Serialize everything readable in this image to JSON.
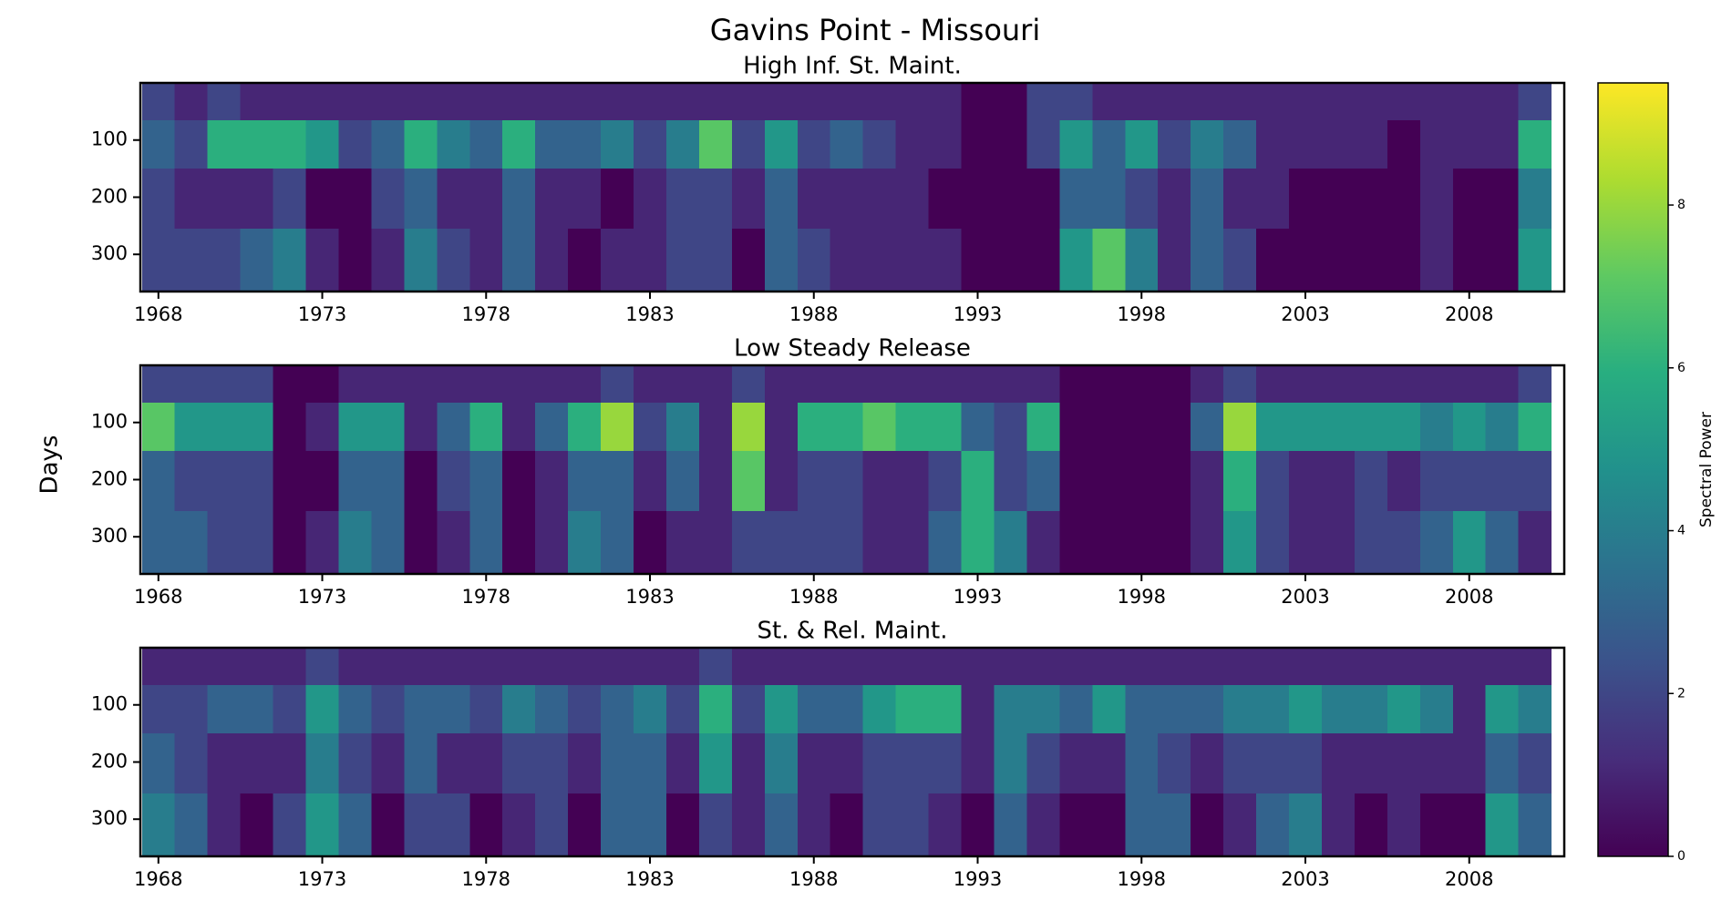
{
  "title": "Gavins Point - Missouri",
  "ylabel": "Days",
  "colorbar": {
    "label": "Spectral Power",
    "colormap": "viridis",
    "lim": [
      0,
      9.5
    ],
    "ticks": [
      0,
      2,
      4,
      6,
      8
    ]
  },
  "chart_data": [
    {
      "type": "heatmap",
      "title": "High Inf. St. Maint.",
      "x": [
        1968,
        1969,
        1970,
        1971,
        1972,
        1973,
        1974,
        1975,
        1976,
        1977,
        1978,
        1979,
        1980,
        1981,
        1982,
        1983,
        1984,
        1985,
        1986,
        1987,
        1988,
        1989,
        1990,
        1991,
        1992,
        1993,
        1994,
        1995,
        1996,
        1997,
        1998,
        1999,
        2000,
        2001,
        2002,
        2003,
        2004,
        2005,
        2006,
        2007,
        2008,
        2009,
        2010
      ],
      "y": [
        30,
        100,
        200,
        310
      ],
      "z": [
        [
          2,
          1,
          2,
          1,
          1,
          1,
          1,
          1,
          1,
          1,
          1,
          1,
          1,
          1,
          1,
          1,
          1,
          1,
          1,
          1,
          1,
          1,
          1,
          1,
          1,
          0,
          0,
          2,
          2,
          1,
          1,
          1,
          1,
          1,
          1,
          1,
          1,
          1,
          1,
          1,
          1,
          1,
          2
        ],
        [
          3,
          2,
          6,
          6,
          6,
          5,
          2,
          3,
          6,
          4,
          3,
          6,
          3,
          3,
          4,
          2,
          4,
          7,
          2,
          5,
          2,
          3,
          2,
          1,
          1,
          0,
          0,
          2,
          5,
          3,
          5,
          2,
          4,
          3,
          1,
          1,
          1,
          1,
          0,
          1,
          1,
          1,
          6
        ],
        [
          2,
          1,
          1,
          1,
          2,
          0,
          0,
          2,
          3,
          1,
          1,
          3,
          1,
          1,
          0,
          1,
          2,
          2,
          1,
          3,
          1,
          1,
          1,
          1,
          0,
          0,
          0,
          0,
          3,
          3,
          2,
          1,
          3,
          1,
          1,
          0,
          0,
          0,
          0,
          1,
          0,
          0,
          4
        ],
        [
          2,
          2,
          2,
          3,
          4,
          1,
          0,
          1,
          4,
          2,
          1,
          3,
          1,
          0,
          1,
          1,
          2,
          2,
          0,
          3,
          2,
          1,
          1,
          1,
          1,
          0,
          0,
          0,
          5,
          7,
          4,
          1,
          3,
          2,
          0,
          0,
          0,
          0,
          0,
          1,
          0,
          0,
          5
        ]
      ],
      "xlim": [
        1967.45,
        2010.9
      ],
      "ylim": [
        365,
        0
      ],
      "xticks": [
        1968,
        1973,
        1978,
        1983,
        1988,
        1993,
        1998,
        2003,
        2008
      ],
      "yticks": [
        100,
        200,
        300
      ]
    },
    {
      "type": "heatmap",
      "title": "Low Steady Release",
      "x": [
        1968,
        1969,
        1970,
        1971,
        1972,
        1973,
        1974,
        1975,
        1976,
        1977,
        1978,
        1979,
        1980,
        1981,
        1982,
        1983,
        1984,
        1985,
        1986,
        1987,
        1988,
        1989,
        1990,
        1991,
        1992,
        1993,
        1994,
        1995,
        1996,
        1997,
        1998,
        1999,
        2000,
        2001,
        2002,
        2003,
        2004,
        2005,
        2006,
        2007,
        2008,
        2009,
        2010
      ],
      "y": [
        30,
        100,
        200,
        310
      ],
      "z": [
        [
          2,
          2,
          2,
          2,
          0,
          0,
          1,
          1,
          1,
          1,
          1,
          1,
          1,
          1,
          2,
          1,
          1,
          1,
          2,
          1,
          1,
          1,
          1,
          1,
          1,
          1,
          1,
          1,
          0,
          0,
          0,
          0,
          1,
          2,
          1,
          1,
          1,
          1,
          1,
          1,
          1,
          1,
          2
        ],
        [
          7,
          5,
          5,
          5,
          0,
          1,
          5,
          5,
          1,
          3,
          6,
          1,
          3,
          6,
          8,
          2,
          4,
          1,
          8,
          1,
          6,
          6,
          7,
          6,
          6,
          3,
          2,
          6,
          0,
          0,
          0,
          0,
          3,
          8,
          5,
          5,
          5,
          5,
          5,
          4,
          5,
          4,
          6
        ],
        [
          3,
          2,
          2,
          2,
          0,
          0,
          3,
          3,
          0,
          2,
          3,
          0,
          1,
          3,
          3,
          1,
          3,
          1,
          7,
          1,
          2,
          2,
          1,
          1,
          2,
          6,
          2,
          3,
          0,
          0,
          0,
          0,
          1,
          6,
          2,
          1,
          1,
          2,
          1,
          2,
          2,
          2,
          2
        ],
        [
          3,
          3,
          2,
          2,
          0,
          1,
          4,
          3,
          0,
          1,
          3,
          0,
          1,
          4,
          3,
          0,
          1,
          1,
          2,
          2,
          2,
          2,
          1,
          1,
          3,
          6,
          4,
          1,
          0,
          0,
          0,
          0,
          1,
          5,
          2,
          1,
          1,
          2,
          2,
          3,
          5,
          3,
          1
        ]
      ],
      "xlim": [
        1967.45,
        2010.9
      ],
      "ylim": [
        365,
        0
      ],
      "xticks": [
        1968,
        1973,
        1978,
        1983,
        1988,
        1993,
        1998,
        2003,
        2008
      ],
      "yticks": [
        100,
        200,
        300
      ]
    },
    {
      "type": "heatmap",
      "title": "St. & Rel. Maint.",
      "x": [
        1968,
        1969,
        1970,
        1971,
        1972,
        1973,
        1974,
        1975,
        1976,
        1977,
        1978,
        1979,
        1980,
        1981,
        1982,
        1983,
        1984,
        1985,
        1986,
        1987,
        1988,
        1989,
        1990,
        1991,
        1992,
        1993,
        1994,
        1995,
        1996,
        1997,
        1998,
        1999,
        2000,
        2001,
        2002,
        2003,
        2004,
        2005,
        2006,
        2007,
        2008,
        2009,
        2010
      ],
      "y": [
        30,
        100,
        200,
        310
      ],
      "z": [
        [
          1,
          1,
          1,
          1,
          1,
          2,
          1,
          1,
          1,
          1,
          1,
          1,
          1,
          1,
          1,
          1,
          1,
          2,
          1,
          1,
          1,
          1,
          1,
          1,
          1,
          1,
          1,
          1,
          1,
          1,
          1,
          1,
          1,
          1,
          1,
          1,
          1,
          1,
          1,
          1,
          1,
          1,
          1
        ],
        [
          2,
          2,
          3,
          3,
          2,
          5,
          3,
          2,
          3,
          3,
          2,
          4,
          3,
          2,
          3,
          4,
          2,
          6,
          2,
          5,
          3,
          3,
          5,
          6,
          6,
          1,
          4,
          4,
          3,
          5,
          3,
          3,
          3,
          4,
          4,
          5,
          4,
          4,
          5,
          4,
          1,
          5,
          4
        ],
        [
          3,
          2,
          1,
          1,
          1,
          4,
          2,
          1,
          3,
          1,
          1,
          2,
          2,
          1,
          3,
          3,
          1,
          5,
          1,
          4,
          1,
          1,
          2,
          2,
          2,
          1,
          4,
          2,
          1,
          1,
          3,
          2,
          1,
          2,
          2,
          2,
          1,
          1,
          1,
          1,
          1,
          3,
          2
        ],
        [
          4,
          3,
          1,
          0,
          2,
          5,
          3,
          0,
          2,
          2,
          0,
          1,
          2,
          0,
          3,
          3,
          0,
          2,
          1,
          3,
          1,
          0,
          2,
          2,
          1,
          0,
          3,
          1,
          0,
          0,
          3,
          3,
          0,
          1,
          3,
          4,
          1,
          0,
          1,
          0,
          0,
          5,
          3
        ]
      ],
      "xlim": [
        1967.45,
        2010.9
      ],
      "ylim": [
        365,
        0
      ],
      "xticks": [
        1968,
        1973,
        1978,
        1983,
        1988,
        1993,
        1998,
        2003,
        2008
      ],
      "yticks": [
        100,
        200,
        300
      ]
    }
  ]
}
